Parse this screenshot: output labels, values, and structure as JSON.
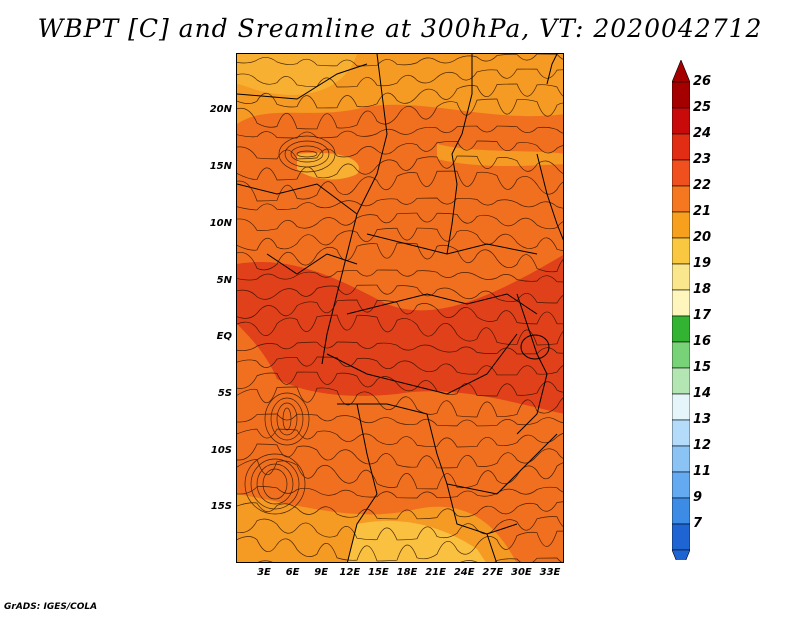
{
  "title": "WBPT [C] and Sreamline at 300hPa, VT: 2020042712",
  "credit": "GrADS: IGES/COLA",
  "lat_labels": [
    "20N",
    "15N",
    "10N",
    "5N",
    "EQ",
    "5S",
    "10S",
    "15S"
  ],
  "lon_labels": [
    "3E",
    "6E",
    "9E",
    "12E",
    "15E",
    "18E",
    "21E",
    "24E",
    "27E",
    "30E",
    "33E"
  ],
  "colorbar": {
    "labels": [
      "26",
      "25",
      "24",
      "23",
      "22",
      "21",
      "20",
      "19",
      "18",
      "17",
      "16",
      "15",
      "14",
      "13",
      "12",
      "11",
      "9",
      "7"
    ],
    "colors": [
      "#a50000",
      "#c80a0a",
      "#e02d14",
      "#f0501e",
      "#f57820",
      "#f7a01e",
      "#fac840",
      "#fae68c",
      "#fff6be",
      "#32b432",
      "#78d278",
      "#b4e6b4",
      "#e6f5fa",
      "#b4dcfa",
      "#8cc3f5",
      "#64aaf0",
      "#3c8ce6",
      "#1e64d2"
    ]
  },
  "map_colors": {
    "base": "#f07020",
    "warm": "#e0401a",
    "cool": "#f59a22",
    "cooler": "#f8b032",
    "coolest": "#fac040"
  }
}
